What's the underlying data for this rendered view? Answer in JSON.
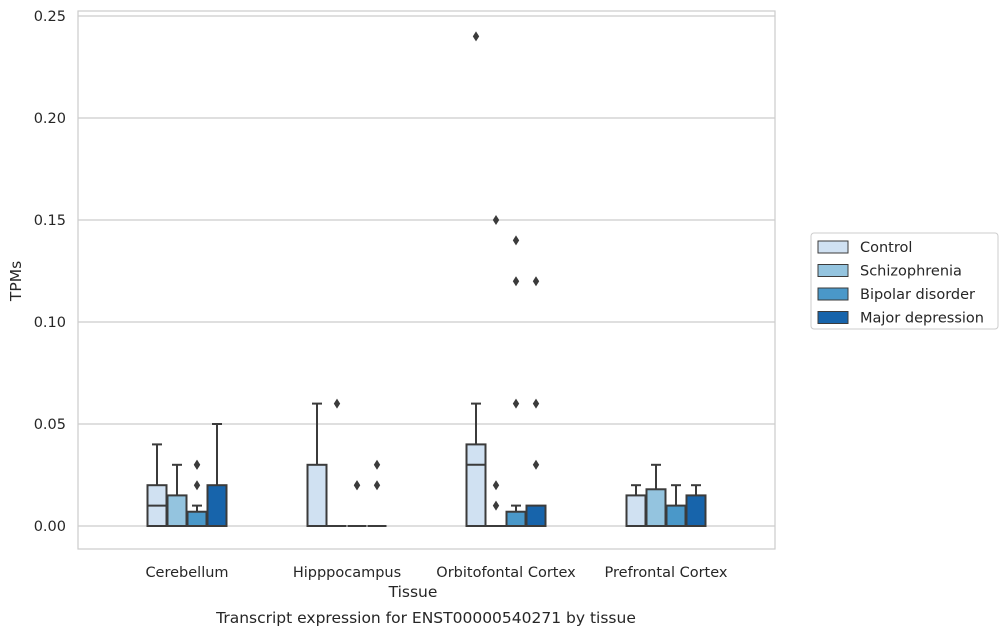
{
  "chart_data": {
    "type": "box",
    "title": "",
    "caption": "Transcript expression for ENST00000540271 by tissue",
    "xlabel": "Tissue",
    "ylabel": "TPMs",
    "ylim": [
      -0.012,
      0.252
    ],
    "yticks": [
      "0.00",
      "0.05",
      "0.10",
      "0.15",
      "0.20",
      "0.25"
    ],
    "ytick_values": [
      0,
      0.05,
      0.1,
      0.15,
      0.2,
      0.25
    ],
    "grid": true,
    "legend_position": "right",
    "categories": [
      "Cerebellum",
      "Hipppocampus",
      "Orbitofontal Cortex",
      "Prefrontal Cortex"
    ],
    "series": [
      {
        "name": "Control",
        "color": "#d0e1f2",
        "boxes": [
          {
            "q1": 0,
            "median": 0.01,
            "q3": 0.02,
            "whislo": 0,
            "whishi": 0.04,
            "fliers": []
          },
          {
            "q1": 0,
            "median": 0,
            "q3": 0.03,
            "whislo": 0,
            "whishi": 0.06,
            "fliers": []
          },
          {
            "q1": 0,
            "median": 0.03,
            "q3": 0.04,
            "whislo": 0,
            "whishi": 0.06,
            "fliers": [
              0.24
            ]
          },
          {
            "q1": 0,
            "median": 0,
            "q3": 0.015,
            "whislo": 0,
            "whishi": 0.02,
            "fliers": []
          }
        ]
      },
      {
        "name": "Schizophrenia",
        "color": "#94c4df",
        "boxes": [
          {
            "q1": 0,
            "median": 0,
            "q3": 0.015,
            "whislo": 0,
            "whishi": 0.03,
            "fliers": []
          },
          {
            "q1": 0,
            "median": 0,
            "q3": 0,
            "whislo": 0,
            "whishi": 0,
            "fliers": [
              0.06
            ]
          },
          {
            "q1": 0,
            "median": 0,
            "q3": 0,
            "whislo": 0,
            "whishi": 0,
            "fliers": [
              0.01,
              0.02,
              0.15
            ]
          },
          {
            "q1": 0,
            "median": 0,
            "q3": 0.018,
            "whislo": 0,
            "whishi": 0.03,
            "fliers": []
          }
        ]
      },
      {
        "name": "Bipolar disorder",
        "color": "#4a98c9",
        "boxes": [
          {
            "q1": 0,
            "median": 0,
            "q3": 0.007,
            "whislo": 0,
            "whishi": 0.01,
            "fliers": [
              0.02,
              0.03,
              0.03
            ]
          },
          {
            "q1": 0,
            "median": 0,
            "q3": 0,
            "whislo": 0,
            "whishi": 0,
            "fliers": [
              0.02,
              0.02
            ]
          },
          {
            "q1": 0,
            "median": 0,
            "q3": 0.007,
            "whislo": 0,
            "whishi": 0.01,
            "fliers": [
              0.06,
              0.12,
              0.14
            ]
          },
          {
            "q1": 0,
            "median": 0,
            "q3": 0.01,
            "whislo": 0,
            "whishi": 0.02,
            "fliers": []
          }
        ]
      },
      {
        "name": "Major depression",
        "color": "#1764ab",
        "boxes": [
          {
            "q1": 0,
            "median": 0,
            "q3": 0.02,
            "whislo": 0,
            "whishi": 0.05,
            "fliers": []
          },
          {
            "q1": 0,
            "median": 0,
            "q3": 0,
            "whislo": 0,
            "whishi": 0,
            "fliers": [
              0.02,
              0.03
            ]
          },
          {
            "q1": 0,
            "median": 0,
            "q3": 0.01,
            "whislo": 0,
            "whishi": 0.01,
            "fliers": [
              0.03,
              0.06,
              0.12
            ]
          },
          {
            "q1": 0,
            "median": 0,
            "q3": 0.015,
            "whislo": 0,
            "whishi": 0.02,
            "fliers": []
          }
        ]
      }
    ]
  }
}
